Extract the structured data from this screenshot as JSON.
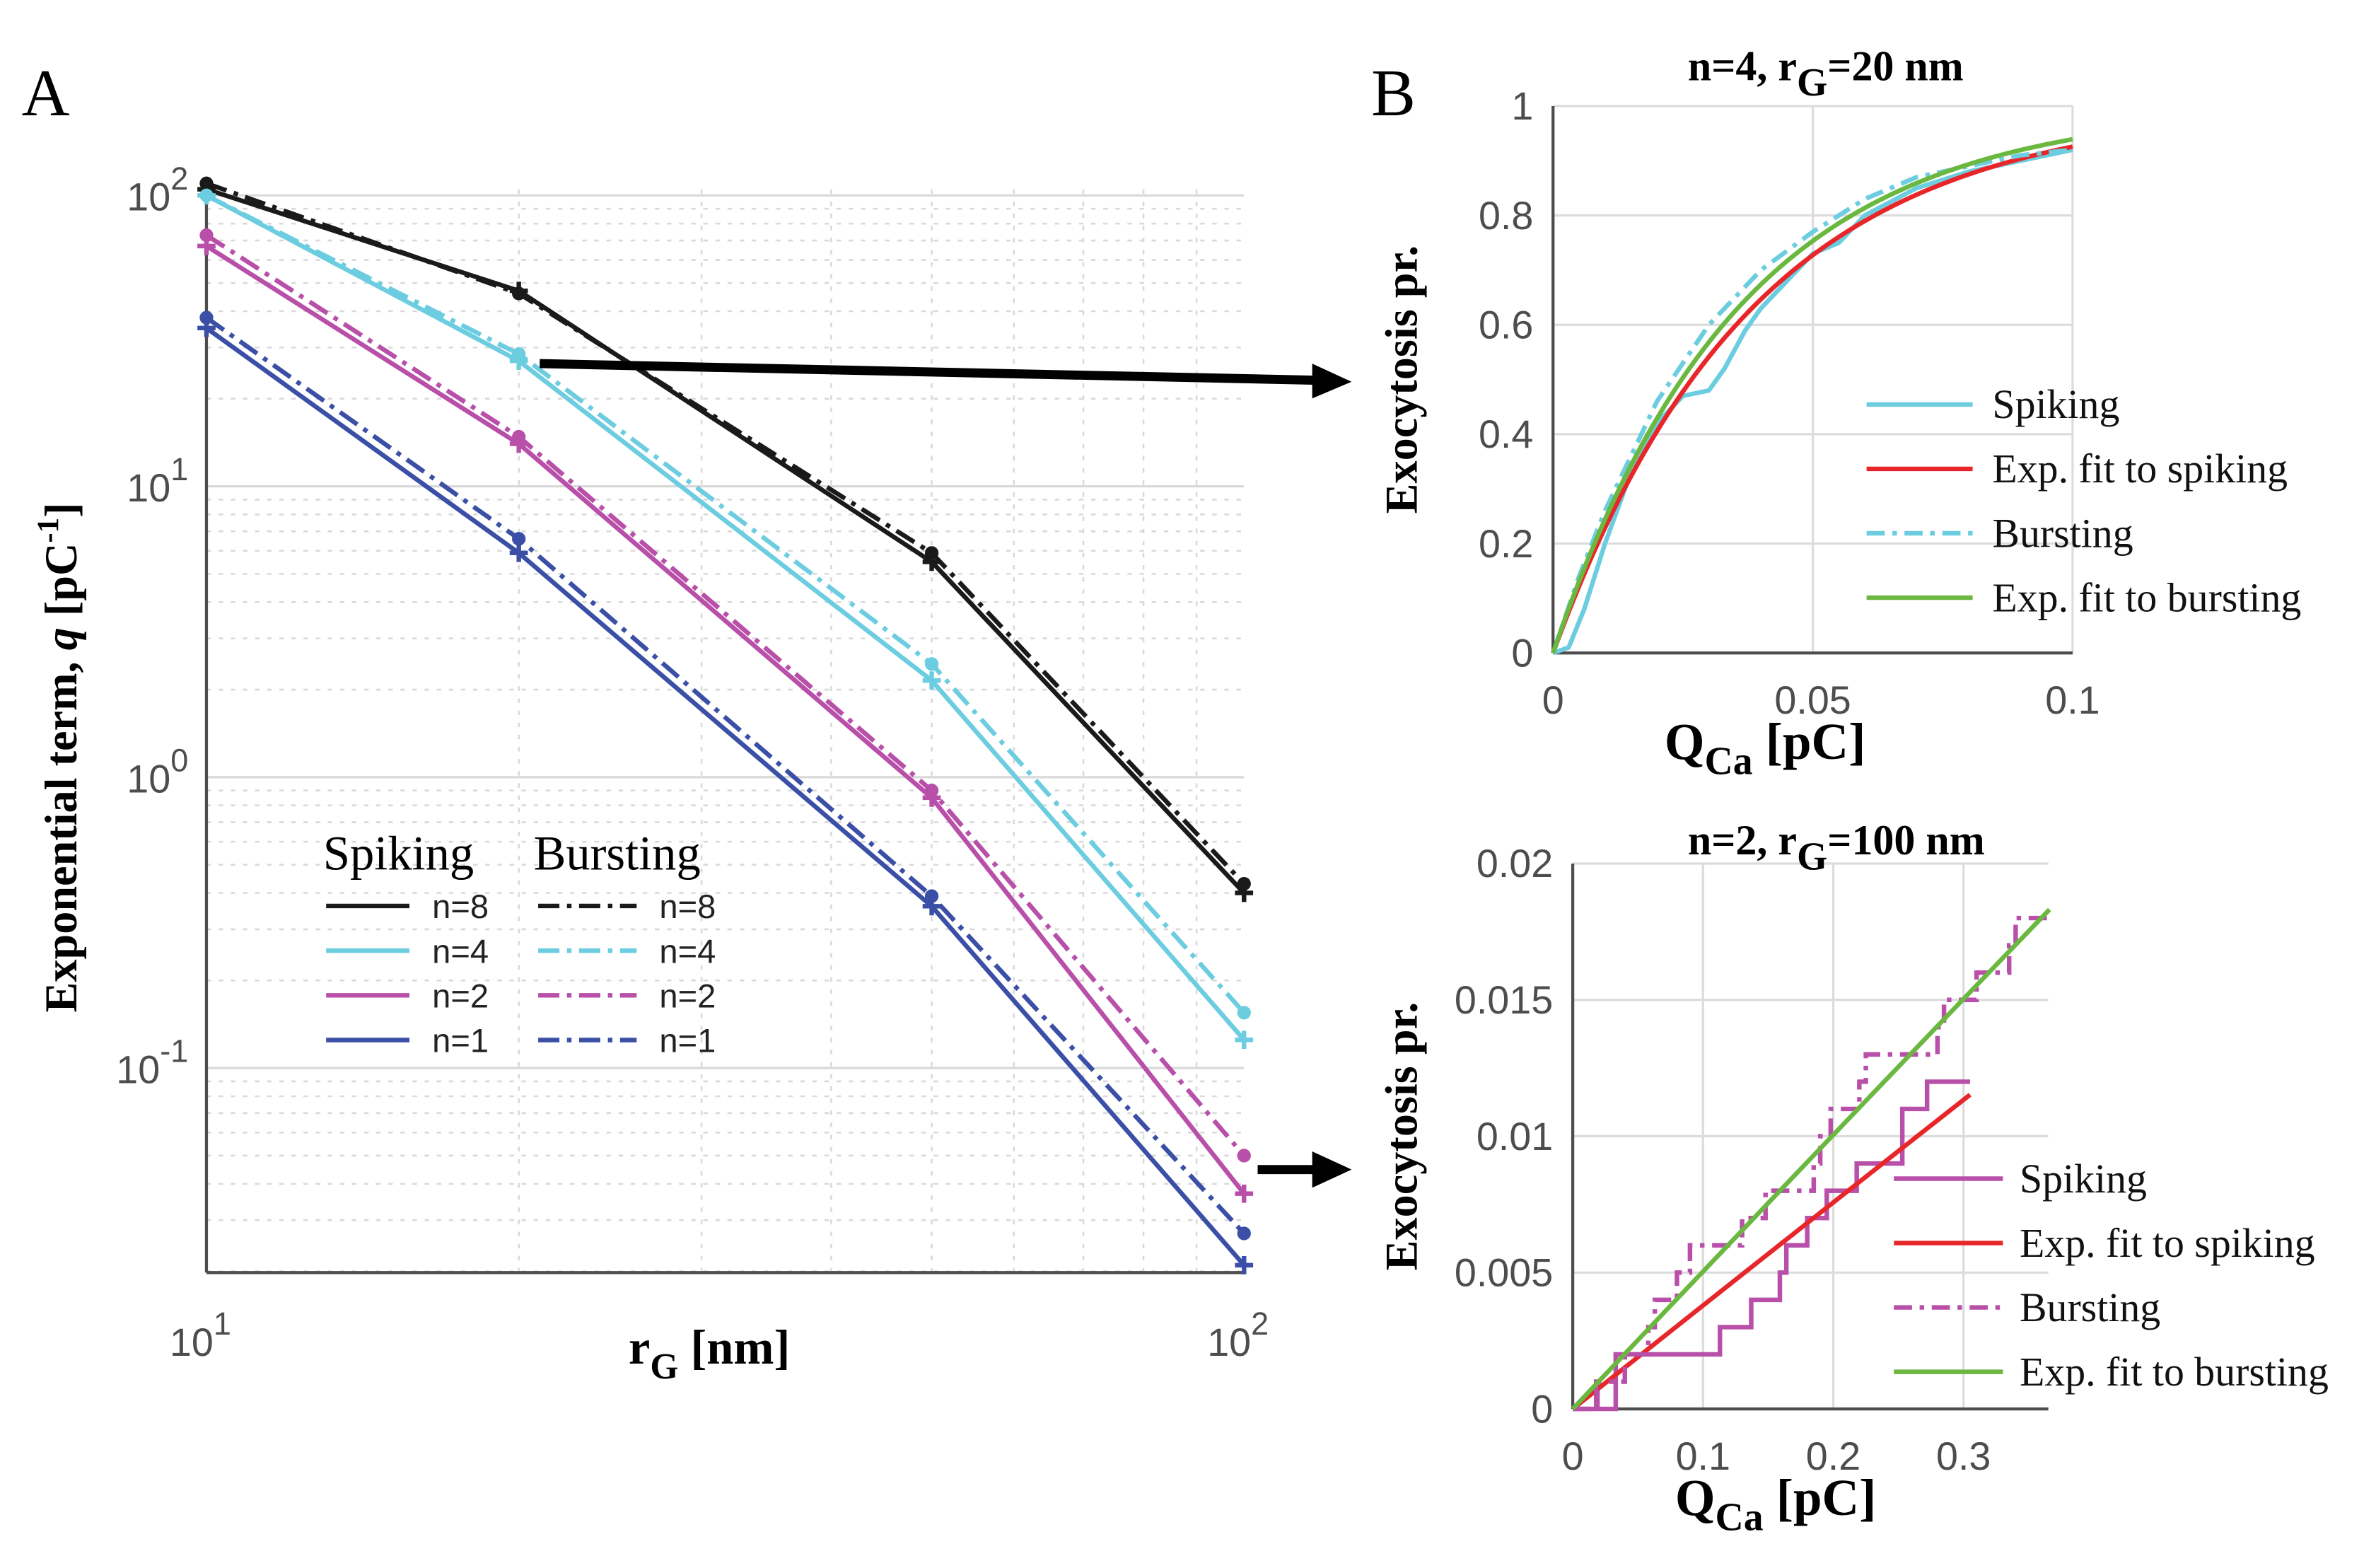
{
  "panel_labels": {
    "a": "A",
    "b": "B"
  },
  "chart_data": [
    {
      "type": "line",
      "panel": "A",
      "xscale": "log",
      "yscale": "log",
      "xlabel": {
        "main": "r",
        "sub": "G",
        "rest": "  [nm]"
      },
      "ylabel": {
        "pre": "Exponential term, ",
        "italic": "q",
        "post": " [pC",
        "sup": "-1",
        "end": "]"
      },
      "xlim": [
        10,
        100
      ],
      "ylim": [
        0.018,
        105
      ],
      "x_ticks": [
        {
          "v": 10,
          "base": "10",
          "exp": "1"
        },
        {
          "v": 100,
          "base": "10",
          "exp": "2"
        }
      ],
      "y_ticks": [
        {
          "v": 100,
          "base": "10",
          "exp": "2"
        },
        {
          "v": 10,
          "base": "10",
          "exp": "1"
        },
        {
          "v": 1,
          "base": "10",
          "exp": "0"
        },
        {
          "v": 0.1,
          "base": "10",
          "exp": "-1"
        }
      ],
      "grid": true,
      "legend": {
        "placement": "lower-left",
        "spiking_title": "Spiking",
        "bursting_title": "Bursting"
      },
      "x": [
        10,
        20,
        50,
        100
      ],
      "series": [
        {
          "name": "n=8",
          "mode": "Spiking",
          "color": "#1a1a1a",
          "values": [
            105,
            47,
            5.5,
            0.4
          ]
        },
        {
          "name": "n=4",
          "mode": "Spiking",
          "color": "#6ccde0",
          "values": [
            100,
            27,
            2.15,
            0.125
          ]
        },
        {
          "name": "n=2",
          "mode": "Spiking",
          "color": "#b84fa8",
          "values": [
            67,
            14,
            0.85,
            0.037
          ]
        },
        {
          "name": "n=1",
          "mode": "Spiking",
          "color": "#3a4fa5",
          "values": [
            35,
            5.9,
            0.36,
            0.021
          ]
        },
        {
          "name": "n=8",
          "mode": "Bursting",
          "color": "#1a1a1a",
          "values": [
            110,
            46,
            5.9,
            0.43
          ]
        },
        {
          "name": "n=4",
          "mode": "Bursting",
          "color": "#6ccde0",
          "values": [
            100,
            28.5,
            2.45,
            0.155
          ]
        },
        {
          "name": "n=2",
          "mode": "Bursting",
          "color": "#b84fa8",
          "values": [
            73,
            14.8,
            0.9,
            0.05
          ]
        },
        {
          "name": "n=1",
          "mode": "Bursting",
          "color": "#3a4fa5",
          "values": [
            38,
            6.6,
            0.39,
            0.027
          ]
        }
      ]
    },
    {
      "type": "line",
      "panel": "B-top",
      "title": {
        "pre": "n=4, r",
        "sub": "G",
        "post": "=20 nm"
      },
      "xlabel": {
        "main": "Q",
        "sub": "Ca",
        "rest": " [pC]"
      },
      "ylabel": "Exocytosis pr.",
      "xlim": [
        0,
        0.1
      ],
      "ylim": [
        0,
        1
      ],
      "x_ticks": [
        "0",
        "0.05",
        "0.1"
      ],
      "y_ticks": [
        "0",
        "0.2",
        "0.4",
        "0.6",
        "0.8",
        "1"
      ],
      "grid": true,
      "legend": {
        "placement": "lower-right"
      },
      "series": [
        {
          "name": "Spiking",
          "color": "#6ccde0",
          "style": "solid",
          "x": [
            0,
            0.003,
            0.006,
            0.01,
            0.015,
            0.02,
            0.025,
            0.03,
            0.033,
            0.037,
            0.04,
            0.045,
            0.05,
            0.055,
            0.06,
            0.07,
            0.08,
            0.09,
            0.1
          ],
          "y": [
            0,
            0.01,
            0.08,
            0.2,
            0.33,
            0.42,
            0.47,
            0.48,
            0.52,
            0.59,
            0.63,
            0.68,
            0.73,
            0.75,
            0.8,
            0.85,
            0.88,
            0.9,
            0.92
          ]
        },
        {
          "name": "Exp. fit to spiking",
          "color": "#e8262a",
          "style": "solid",
          "q": 26
        },
        {
          "name": "Bursting",
          "color": "#6ccde0",
          "style": "dashdot",
          "x": [
            0,
            0.005,
            0.01,
            0.02,
            0.03,
            0.04,
            0.05,
            0.06,
            0.07,
            0.08,
            0.09,
            0.1
          ],
          "y": [
            0,
            0.14,
            0.26,
            0.46,
            0.6,
            0.7,
            0.77,
            0.83,
            0.87,
            0.89,
            0.91,
            0.92
          ]
        },
        {
          "name": "Exp. fit to bursting",
          "color": "#6ab840",
          "style": "solid",
          "q": 28
        }
      ]
    },
    {
      "type": "line",
      "panel": "B-bottom",
      "title": {
        "pre": "n=2, r",
        "sub": "G",
        "post": "=100 nm"
      },
      "xlabel": {
        "main": "Q",
        "sub": "Ca",
        "rest": " [pC]"
      },
      "ylabel": "Exocytosis pr.",
      "xlim": [
        0,
        0.365
      ],
      "ylim": [
        0,
        0.02
      ],
      "x_ticks": [
        "0",
        "0.1",
        "0.2",
        "0.3"
      ],
      "y_ticks": [
        "0",
        "0.005",
        "0.01",
        "0.015",
        "0.02"
      ],
      "grid": true,
      "legend": {
        "placement": "lower-right"
      },
      "series": [
        {
          "name": "Spiking",
          "color": "#b84fa8",
          "style": "step",
          "x": [
            0,
            0.018,
            0.019,
            0.033,
            0.113,
            0.137,
            0.159,
            0.164,
            0.18,
            0.195,
            0.218,
            0.253,
            0.272,
            0.305
          ],
          "y": [
            0,
            0.001,
            0,
            0.002,
            0.003,
            0.004,
            0.005,
            0.006,
            0.007,
            0.008,
            0.009,
            0.011,
            0.012,
            0.012
          ]
        },
        {
          "name": "Exp. fit to spiking",
          "color": "#e8262a",
          "style": "solid",
          "q": 0.038,
          "xmax": 0.305
        },
        {
          "name": "Bursting",
          "color": "#b84fa8",
          "style": "stepdash",
          "x": [
            0,
            0.018,
            0.04,
            0.058,
            0.063,
            0.08,
            0.09,
            0.13,
            0.148,
            0.185,
            0.19,
            0.198,
            0.22,
            0.225,
            0.28,
            0.285,
            0.31,
            0.335,
            0.34,
            0.366
          ],
          "y": [
            0,
            0.001,
            0.002,
            0.003,
            0.004,
            0.005,
            0.006,
            0.007,
            0.008,
            0.009,
            0.01,
            0.011,
            0.012,
            0.013,
            0.014,
            0.015,
            0.016,
            0.017,
            0.018,
            0.018
          ]
        },
        {
          "name": "Exp. fit to bursting",
          "color": "#6ab840",
          "style": "solid",
          "q": 0.0505,
          "xmax": 0.366
        }
      ]
    }
  ]
}
